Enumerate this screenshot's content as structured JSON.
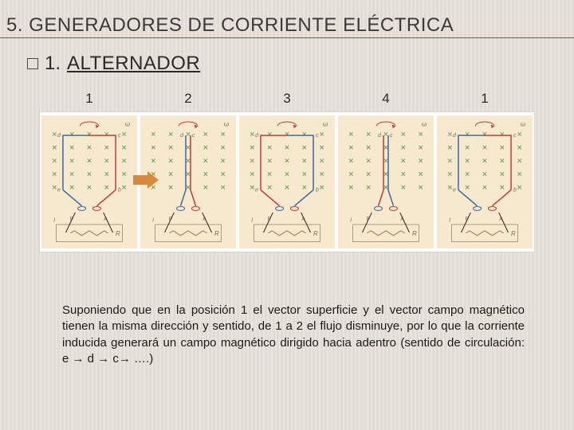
{
  "title": "5. GENERADORES DE CORRIENTE ELÉCTRICA",
  "sub_number": "1.",
  "sub_title": "ALTERNADOR",
  "labels": [
    "1",
    "2",
    "3",
    "4",
    "1"
  ],
  "paragraph": "Suponiendo que en la posición 1 el vector superficie y el vector campo magnético tienen la misma dirección y sentido, de 1 a 2 el flujo disminuye, por lo que la corriente inducida generará un campo magnético dirigido hacia adentro (sentido de circulación: e → d → c→ ….)",
  "arrow_color": "#d88a3a",
  "colors": {
    "panel_bg": "#f7e9ce",
    "cross": "#6fa05a",
    "red_wire": "#c43a3a",
    "blue_wire": "#3a6aa8",
    "resistor": "#a88855",
    "text_small": "#7a6a55",
    "accent_line": "#c4374e"
  },
  "panels": [
    {
      "type": "open",
      "arc_start": 0,
      "swap": false
    },
    {
      "type": "edge",
      "swap": false
    },
    {
      "type": "open",
      "arc_start": 0,
      "swap": true
    },
    {
      "type": "edge",
      "swap": true
    },
    {
      "type": "open",
      "arc_start": 0,
      "swap": false
    }
  ]
}
